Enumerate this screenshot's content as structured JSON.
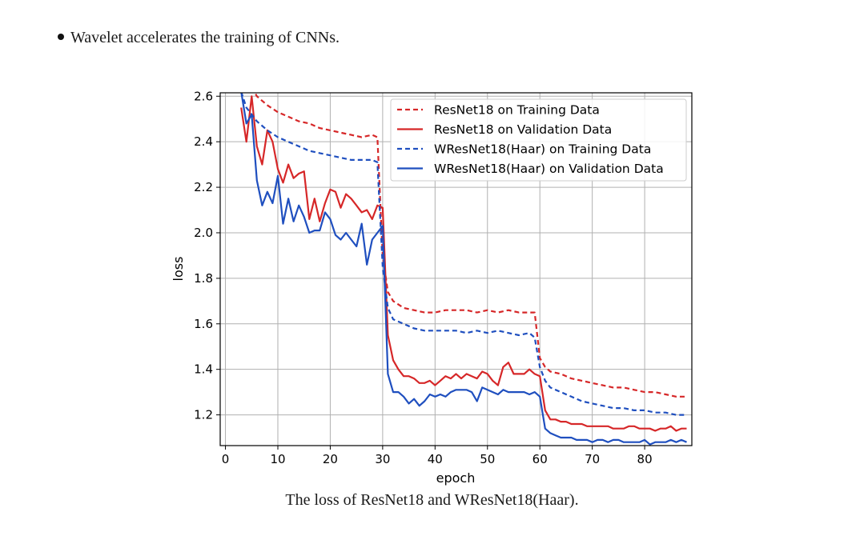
{
  "bullet_text": "Wavelet accelerates the training of CNNs.",
  "caption": "The loss of ResNet18 and WResNet18(Haar).",
  "chart_data": {
    "type": "line",
    "title": "",
    "xlabel": "epoch",
    "ylabel": "loss",
    "xlim": [
      -1,
      89
    ],
    "ylim": [
      1.065,
      2.615
    ],
    "xticks": [
      0,
      10,
      20,
      30,
      40,
      50,
      60,
      70,
      80
    ],
    "yticks": [
      1.2,
      1.4,
      1.6,
      1.8,
      2.0,
      2.2,
      2.4,
      2.6
    ],
    "grid": true,
    "legend_position": "top-right",
    "series": [
      {
        "name": "ResNet18 on Training Data",
        "color": "#d62728",
        "dash": "dashed",
        "x": [
          5,
          6,
          8,
          10,
          12,
          14,
          16,
          18,
          20,
          22,
          24,
          26,
          28,
          29,
          30,
          31,
          32,
          34,
          36,
          38,
          40,
          42,
          44,
          46,
          48,
          50,
          52,
          54,
          56,
          58,
          59,
          60,
          61,
          62,
          64,
          66,
          68,
          70,
          72,
          74,
          76,
          78,
          80,
          82,
          84,
          86,
          88
        ],
        "y": [
          2.64,
          2.6,
          2.56,
          2.53,
          2.51,
          2.49,
          2.48,
          2.46,
          2.45,
          2.44,
          2.43,
          2.42,
          2.43,
          2.42,
          1.9,
          1.74,
          1.7,
          1.67,
          1.66,
          1.65,
          1.65,
          1.66,
          1.66,
          1.66,
          1.65,
          1.66,
          1.65,
          1.66,
          1.65,
          1.65,
          1.65,
          1.45,
          1.41,
          1.39,
          1.38,
          1.36,
          1.35,
          1.34,
          1.33,
          1.32,
          1.32,
          1.31,
          1.3,
          1.3,
          1.29,
          1.28,
          1.28
        ]
      },
      {
        "name": "ResNet18 on Validation Data",
        "color": "#d62728",
        "dash": "solid",
        "x": [
          3,
          4,
          5,
          6,
          7,
          8,
          9,
          10,
          11,
          12,
          13,
          14,
          15,
          16,
          17,
          18,
          19,
          20,
          21,
          22,
          23,
          24,
          25,
          26,
          27,
          28,
          29,
          30,
          31,
          32,
          33,
          34,
          35,
          36,
          37,
          38,
          39,
          40,
          41,
          42,
          43,
          44,
          45,
          46,
          47,
          48,
          49,
          50,
          51,
          52,
          53,
          54,
          55,
          56,
          57,
          58,
          59,
          60,
          61,
          62,
          63,
          64,
          65,
          66,
          67,
          68,
          69,
          70,
          71,
          72,
          73,
          74,
          75,
          76,
          77,
          78,
          79,
          80,
          81,
          82,
          83,
          84,
          85,
          86,
          87,
          88
        ],
        "y": [
          2.55,
          2.4,
          2.6,
          2.38,
          2.3,
          2.45,
          2.4,
          2.28,
          2.22,
          2.3,
          2.24,
          2.26,
          2.27,
          2.06,
          2.15,
          2.05,
          2.13,
          2.19,
          2.18,
          2.11,
          2.17,
          2.15,
          2.12,
          2.09,
          2.1,
          2.06,
          2.12,
          2.11,
          1.55,
          1.44,
          1.4,
          1.37,
          1.37,
          1.36,
          1.34,
          1.34,
          1.35,
          1.33,
          1.35,
          1.37,
          1.36,
          1.38,
          1.36,
          1.38,
          1.37,
          1.36,
          1.39,
          1.38,
          1.35,
          1.33,
          1.41,
          1.43,
          1.38,
          1.38,
          1.38,
          1.4,
          1.38,
          1.37,
          1.22,
          1.18,
          1.18,
          1.17,
          1.17,
          1.16,
          1.16,
          1.16,
          1.15,
          1.15,
          1.15,
          1.15,
          1.15,
          1.14,
          1.14,
          1.14,
          1.15,
          1.15,
          1.14,
          1.14,
          1.14,
          1.13,
          1.14,
          1.14,
          1.15,
          1.13,
          1.14,
          1.14
        ]
      },
      {
        "name": "WResNet18(Haar) on Training Data",
        "color": "#1f4fbf",
        "dash": "dashed",
        "x": [
          3,
          4,
          5,
          6,
          8,
          10,
          12,
          14,
          16,
          18,
          20,
          22,
          24,
          26,
          28,
          29,
          30,
          31,
          32,
          34,
          36,
          38,
          40,
          42,
          44,
          46,
          48,
          50,
          52,
          54,
          56,
          58,
          59,
          60,
          61,
          62,
          64,
          66,
          68,
          70,
          72,
          74,
          76,
          78,
          80,
          82,
          84,
          86,
          88
        ],
        "y": [
          2.62,
          2.55,
          2.52,
          2.49,
          2.45,
          2.42,
          2.4,
          2.38,
          2.36,
          2.35,
          2.34,
          2.33,
          2.32,
          2.32,
          2.32,
          2.31,
          1.85,
          1.67,
          1.62,
          1.6,
          1.58,
          1.57,
          1.57,
          1.57,
          1.57,
          1.56,
          1.57,
          1.56,
          1.57,
          1.56,
          1.55,
          1.56,
          1.54,
          1.41,
          1.35,
          1.32,
          1.3,
          1.28,
          1.26,
          1.25,
          1.24,
          1.23,
          1.23,
          1.22,
          1.22,
          1.21,
          1.21,
          1.2,
          1.2
        ]
      },
      {
        "name": "WResNet18(Haar) on Validation Data",
        "color": "#1f4fbf",
        "dash": "solid",
        "x": [
          3,
          4,
          5,
          6,
          7,
          8,
          9,
          10,
          11,
          12,
          13,
          14,
          15,
          16,
          17,
          18,
          19,
          20,
          21,
          22,
          23,
          24,
          25,
          26,
          27,
          28,
          29,
          30,
          31,
          32,
          33,
          34,
          35,
          36,
          37,
          38,
          39,
          40,
          41,
          42,
          43,
          44,
          45,
          46,
          47,
          48,
          49,
          50,
          51,
          52,
          53,
          54,
          55,
          56,
          57,
          58,
          59,
          60,
          61,
          62,
          63,
          64,
          65,
          66,
          67,
          68,
          69,
          70,
          71,
          72,
          73,
          74,
          75,
          76,
          77,
          78,
          79,
          80,
          81,
          82,
          83,
          84,
          85,
          86,
          87,
          88
        ],
        "y": [
          2.62,
          2.48,
          2.52,
          2.23,
          2.12,
          2.18,
          2.13,
          2.25,
          2.04,
          2.15,
          2.05,
          2.12,
          2.07,
          2.0,
          2.01,
          2.01,
          2.09,
          2.06,
          1.99,
          1.97,
          2.0,
          1.97,
          1.94,
          2.04,
          1.86,
          1.97,
          2.0,
          2.03,
          1.38,
          1.3,
          1.3,
          1.28,
          1.25,
          1.27,
          1.24,
          1.26,
          1.29,
          1.28,
          1.29,
          1.28,
          1.3,
          1.31,
          1.31,
          1.31,
          1.3,
          1.26,
          1.32,
          1.31,
          1.3,
          1.29,
          1.31,
          1.3,
          1.3,
          1.3,
          1.3,
          1.29,
          1.3,
          1.28,
          1.14,
          1.12,
          1.11,
          1.1,
          1.1,
          1.1,
          1.09,
          1.09,
          1.09,
          1.08,
          1.09,
          1.09,
          1.08,
          1.09,
          1.09,
          1.08,
          1.08,
          1.08,
          1.08,
          1.09,
          1.07,
          1.08,
          1.08,
          1.08,
          1.09,
          1.08,
          1.09,
          1.08
        ]
      }
    ]
  }
}
